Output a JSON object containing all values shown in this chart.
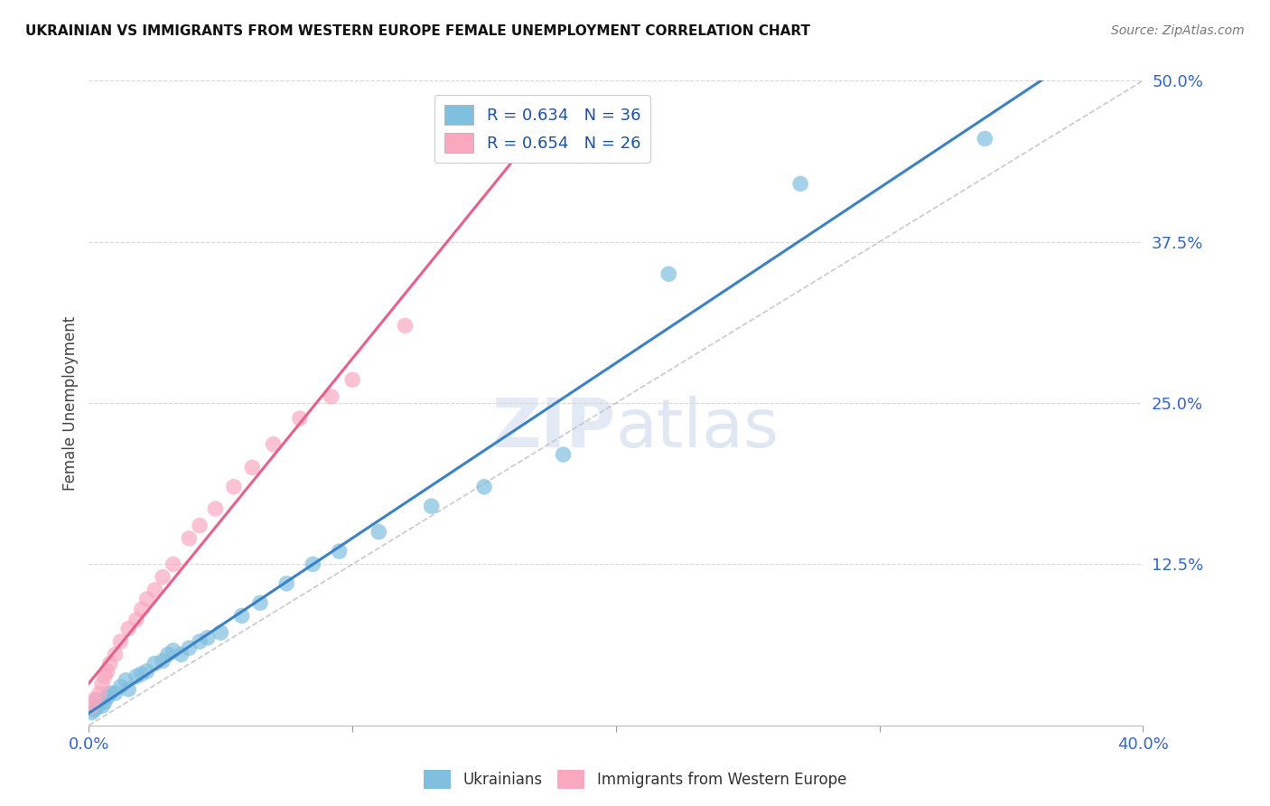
{
  "title": "UKRAINIAN VS IMMIGRANTS FROM WESTERN EUROPE FEMALE UNEMPLOYMENT CORRELATION CHART",
  "source": "Source: ZipAtlas.com",
  "ylabel": "Female Unemployment",
  "xlim": [
    0,
    0.4
  ],
  "ylim": [
    0,
    0.5
  ],
  "x_ticks": [
    0.0,
    0.1,
    0.2,
    0.3,
    0.4
  ],
  "x_tick_labels": [
    "0.0%",
    "",
    "",
    "",
    "40.0%"
  ],
  "y_ticks_right": [
    0.125,
    0.25,
    0.375,
    0.5
  ],
  "y_tick_labels_right": [
    "12.5%",
    "25.0%",
    "37.5%",
    "50.0%"
  ],
  "blue_color": "#7fbfdf",
  "blue_color_line": "#3b82c4",
  "pink_color": "#f9a8c0",
  "pink_color_line": "#e8608a",
  "legend_R_blue": "R = 0.634",
  "legend_N_blue": "N = 36",
  "legend_R_pink": "R = 0.654",
  "legend_N_pink": "N = 26",
  "legend_label_blue": "Ukrainians",
  "legend_label_pink": "Immigrants from Western Europe",
  "blue_x": [
    0.001,
    0.002,
    0.003,
    0.003,
    0.005,
    0.006,
    0.007,
    0.008,
    0.01,
    0.012,
    0.014,
    0.015,
    0.018,
    0.02,
    0.022,
    0.025,
    0.028,
    0.03,
    0.032,
    0.035,
    0.038,
    0.042,
    0.045,
    0.05,
    0.058,
    0.065,
    0.075,
    0.085,
    0.095,
    0.11,
    0.13,
    0.15,
    0.18,
    0.22,
    0.27,
    0.34
  ],
  "blue_y": [
    0.01,
    0.012,
    0.014,
    0.02,
    0.015,
    0.018,
    0.022,
    0.025,
    0.025,
    0.03,
    0.035,
    0.028,
    0.038,
    0.04,
    0.042,
    0.048,
    0.05,
    0.055,
    0.058,
    0.055,
    0.06,
    0.065,
    0.068,
    0.072,
    0.085,
    0.095,
    0.11,
    0.125,
    0.135,
    0.15,
    0.17,
    0.185,
    0.21,
    0.35,
    0.42,
    0.455
  ],
  "pink_x": [
    0.001,
    0.002,
    0.004,
    0.005,
    0.006,
    0.007,
    0.008,
    0.01,
    0.012,
    0.015,
    0.018,
    0.02,
    0.022,
    0.025,
    0.028,
    0.032,
    0.038,
    0.042,
    0.048,
    0.055,
    0.062,
    0.07,
    0.08,
    0.092,
    0.1,
    0.12
  ],
  "pink_y": [
    0.015,
    0.02,
    0.025,
    0.032,
    0.038,
    0.042,
    0.048,
    0.055,
    0.065,
    0.075,
    0.082,
    0.09,
    0.098,
    0.105,
    0.115,
    0.125,
    0.145,
    0.155,
    0.168,
    0.185,
    0.2,
    0.218,
    0.238,
    0.255,
    0.268,
    0.31
  ],
  "watermark": "ZIPatlas",
  "background_color": "#ffffff",
  "grid_color": "#d8d8d8"
}
